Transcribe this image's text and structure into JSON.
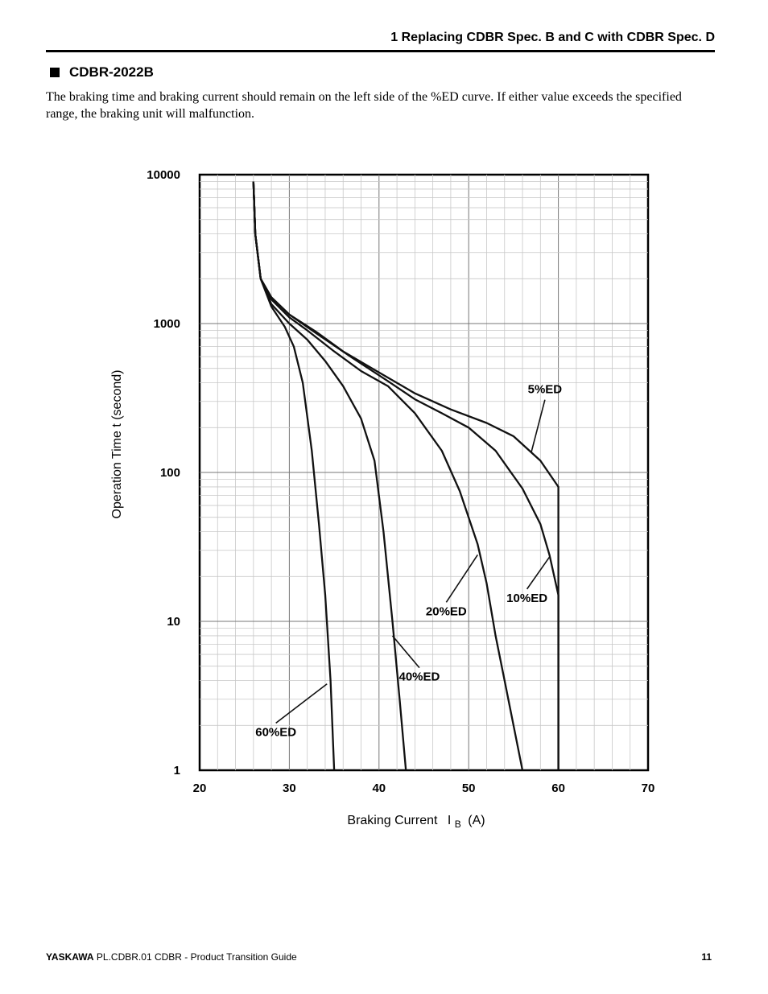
{
  "header": {
    "title": "1  Replacing CDBR Spec. B and C with CDBR Spec. D"
  },
  "section": {
    "title": "CDBR-2022B"
  },
  "body": {
    "text": "The braking time and braking current should remain on the left side of the %ED curve. If either value exceeds the specified range, the braking unit will malfunction."
  },
  "chart_data": {
    "type": "line",
    "title": "",
    "xlabel": "Braking Current",
    "xlabel_symbol": "I",
    "xlabel_subscript": "B",
    "xlabel_unit": "(A)",
    "ylabel": "Operation Time  t  (second)",
    "xlim": [
      20,
      70
    ],
    "ylim": [
      1,
      10000
    ],
    "yscale": "log",
    "grid": true,
    "x_ticks": [
      "20",
      "30",
      "40",
      "50",
      "60",
      "70"
    ],
    "y_ticks": [
      "1",
      "10",
      "100",
      "1000",
      "10000"
    ],
    "series": [
      {
        "name": "5%ED",
        "label": "5%ED",
        "points": [
          [
            26.0,
            9000
          ],
          [
            26.2,
            4000
          ],
          [
            26.8,
            2000
          ],
          [
            28,
            1500
          ],
          [
            30,
            1150
          ],
          [
            33,
            880
          ],
          [
            36,
            650
          ],
          [
            40,
            470
          ],
          [
            44,
            340
          ],
          [
            48,
            265
          ],
          [
            52,
            215
          ],
          [
            55,
            175
          ],
          [
            58,
            120
          ],
          [
            60,
            80
          ],
          [
            60,
            1
          ]
        ]
      },
      {
        "name": "10%ED",
        "label": "10%ED",
        "points": [
          [
            26.0,
            9000
          ],
          [
            26.2,
            4000
          ],
          [
            26.8,
            2000
          ],
          [
            28,
            1500
          ],
          [
            30,
            1150
          ],
          [
            33,
            860
          ],
          [
            37,
            590
          ],
          [
            41,
            410
          ],
          [
            44,
            310
          ],
          [
            47,
            250
          ],
          [
            50,
            200
          ],
          [
            53,
            140
          ],
          [
            56,
            78
          ],
          [
            58,
            45
          ],
          [
            59,
            28
          ],
          [
            60,
            15
          ],
          [
            60,
            1
          ]
        ]
      },
      {
        "name": "20%ED",
        "label": "20%ED",
        "points": [
          [
            26.0,
            9000
          ],
          [
            26.2,
            4000
          ],
          [
            26.8,
            2000
          ],
          [
            28,
            1450
          ],
          [
            30,
            1100
          ],
          [
            32,
            900
          ],
          [
            35,
            650
          ],
          [
            38,
            480
          ],
          [
            41,
            380
          ],
          [
            44,
            250
          ],
          [
            47,
            140
          ],
          [
            49,
            75
          ],
          [
            51,
            33
          ],
          [
            52,
            18
          ],
          [
            53,
            8
          ],
          [
            54,
            4
          ],
          [
            55,
            2
          ],
          [
            56,
            1
          ]
        ]
      },
      {
        "name": "40%ED",
        "label": "40%ED",
        "points": [
          [
            26.0,
            9000
          ],
          [
            26.2,
            4000
          ],
          [
            26.8,
            2000
          ],
          [
            28,
            1350
          ],
          [
            30,
            1000
          ],
          [
            32,
            780
          ],
          [
            34,
            560
          ],
          [
            36,
            380
          ],
          [
            38,
            230
          ],
          [
            39.5,
            120
          ],
          [
            40.5,
            40
          ],
          [
            41.5,
            10
          ],
          [
            42.3,
            3
          ],
          [
            43,
            1
          ]
        ]
      },
      {
        "name": "60%ED",
        "label": "60%ED",
        "points": [
          [
            26.0,
            9000
          ],
          [
            26.2,
            4000
          ],
          [
            26.8,
            2000
          ],
          [
            28,
            1300
          ],
          [
            29.5,
            950
          ],
          [
            30.5,
            700
          ],
          [
            31.5,
            400
          ],
          [
            32.5,
            140
          ],
          [
            33.3,
            45
          ],
          [
            34,
            15
          ],
          [
            34.6,
            4
          ],
          [
            35,
            1
          ]
        ]
      }
    ],
    "annotations": [
      {
        "text": "5%ED",
        "x": 58.5,
        "y": 340,
        "point": [
          57,
          138
        ]
      },
      {
        "text": "10%ED",
        "x": 56.5,
        "y": 13.5,
        "point": [
          59,
          27
        ]
      },
      {
        "text": "20%ED",
        "x": 47.5,
        "y": 11,
        "point": [
          51,
          28
        ]
      },
      {
        "text": "40%ED",
        "x": 44.5,
        "y": 4,
        "point": [
          41.5,
          8
        ]
      },
      {
        "text": "60%ED",
        "x": 28.5,
        "y": 1.7,
        "point": [
          34.2,
          3.8
        ]
      }
    ]
  },
  "footer": {
    "brand": "YASKAWA",
    "doc": "PL.CDBR.01 CDBR - Product Transition Guide",
    "page": "11"
  }
}
